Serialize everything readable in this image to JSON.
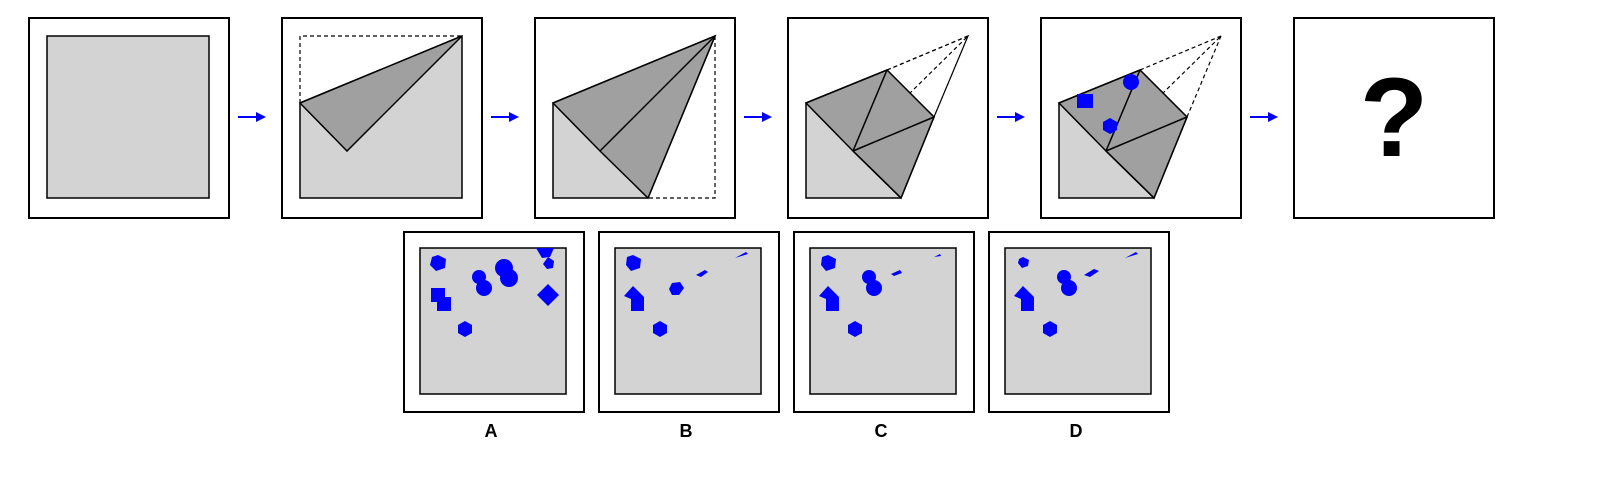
{
  "question_mark": "?",
  "colors": {
    "paper": "#d3d3d3",
    "fold": "#a0a0a0",
    "punch": "#0000ff",
    "arrow": "#0000ff"
  },
  "steps": [
    "unfolded-square",
    "fold-1",
    "fold-2",
    "fold-3",
    "punch-holes",
    "unknown-result"
  ],
  "options": [
    {
      "label": "A"
    },
    {
      "label": "B"
    },
    {
      "label": "C"
    },
    {
      "label": "D"
    }
  ]
}
